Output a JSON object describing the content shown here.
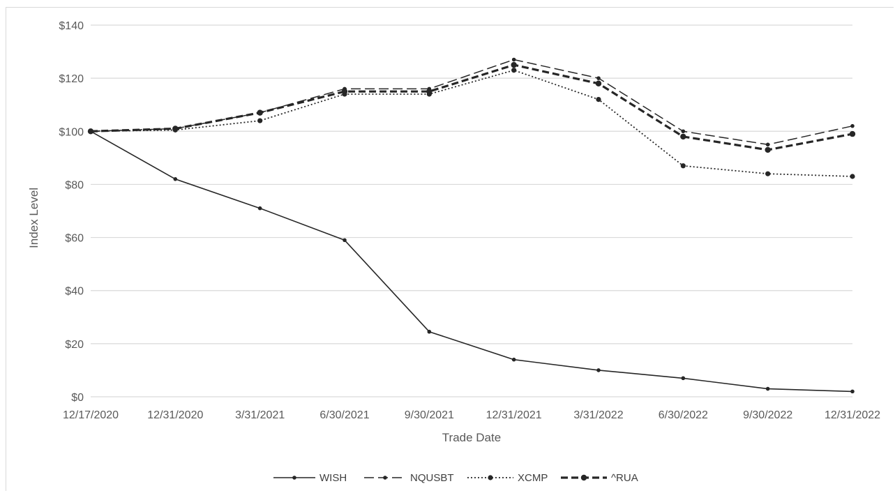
{
  "chart_data": {
    "type": "line",
    "title": "",
    "xlabel": "Trade Date",
    "ylabel": "Index Level",
    "categories": [
      "12/17/2020",
      "12/31/2020",
      "3/31/2021",
      "6/30/2021",
      "9/30/2021",
      "12/31/2021",
      "3/31/2022",
      "6/30/2022",
      "9/30/2022",
      "12/31/2022"
    ],
    "ylim": [
      0,
      140
    ],
    "yticks": [
      0,
      20,
      40,
      60,
      80,
      100,
      120,
      140
    ],
    "ytick_labels": [
      "$0",
      "$20",
      "$40",
      "$60",
      "$80",
      "$100",
      "$120",
      "$140"
    ],
    "grid": true,
    "legend_position": "bottom",
    "series": [
      {
        "name": "WISH",
        "style": "solid",
        "color": "#262626",
        "values": [
          100,
          82,
          71,
          59,
          24.5,
          14,
          10,
          7,
          3,
          2
        ]
      },
      {
        "name": "NQUSBT",
        "style": "long-dash",
        "color": "#262626",
        "values": [
          100,
          101,
          107,
          116,
          116,
          127,
          120,
          100,
          95,
          102
        ]
      },
      {
        "name": "XCMP",
        "style": "dotted",
        "color": "#262626",
        "values": [
          100,
          100.5,
          104,
          114,
          114,
          123,
          112,
          87,
          84,
          83
        ]
      },
      {
        "name": "^RUA",
        "style": "bold-dash",
        "color": "#262626",
        "values": [
          100,
          101,
          107,
          115,
          115,
          125,
          118,
          98,
          93,
          99
        ]
      }
    ]
  }
}
